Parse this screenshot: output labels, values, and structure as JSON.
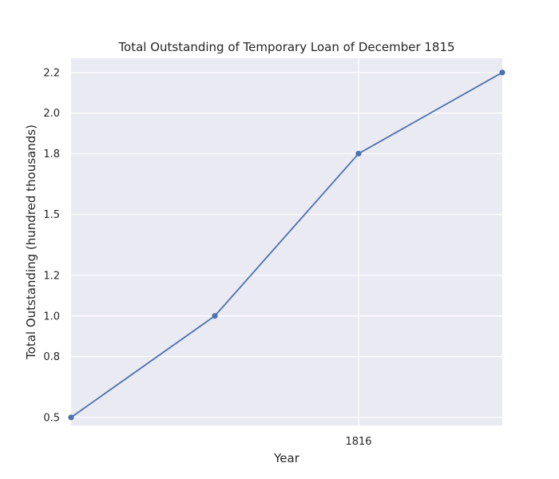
{
  "chart_data": {
    "type": "line",
    "title": "Total Outstanding of Temporary Loan of December 1815",
    "xlabel": "Year",
    "ylabel": "Total Outstanding (hundred thousands)",
    "x": [
      1815.5,
      1815.75,
      1816.0,
      1816.25
    ],
    "xlim": [
      1815.5,
      1816.25
    ],
    "x_ticks": [
      1816
    ],
    "x_tick_labels": [
      "1816"
    ],
    "series": [
      {
        "values": [
          0.5,
          1.0,
          1.8,
          2.2
        ]
      }
    ],
    "ylim": [
      0.46,
      2.27
    ],
    "y_ticks": [
      0.5,
      0.8,
      1.0,
      1.2,
      1.5,
      1.8,
      2.0,
      2.2
    ],
    "y_tick_labels": [
      "0.5",
      "0.8",
      "1.0",
      "1.2",
      "1.5",
      "1.8",
      "2.0",
      "2.2"
    ],
    "grid": true,
    "colors": {
      "line": "#4c72b0",
      "background": "#eaeaf2",
      "grid": "#ffffff"
    }
  }
}
